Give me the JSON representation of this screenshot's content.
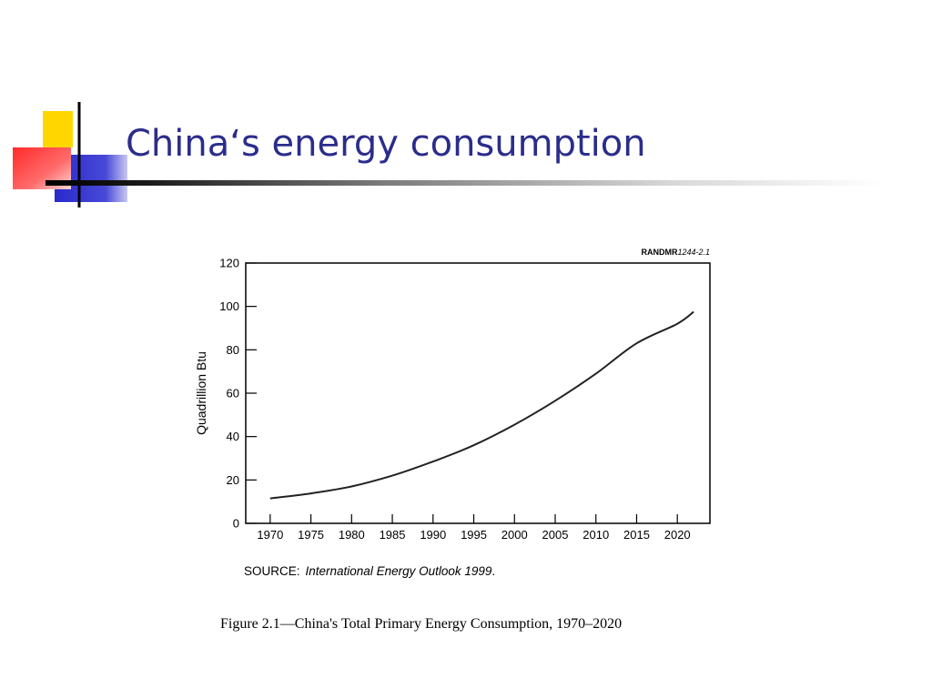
{
  "slide": {
    "title": "China‘s energy consumption"
  },
  "logo": {
    "colors": {
      "yellow": "#ffd700",
      "red": "#ff3030",
      "blue": "#2a2acc",
      "line": "#000000"
    }
  },
  "chart_data": {
    "type": "line",
    "reference_id_prefix": "RANDMR",
    "reference_id_suffix": "1244-2.1",
    "ylabel": "Quadrillion Btu",
    "xlabel": "",
    "xlim": [
      1967,
      2024
    ],
    "ylim": [
      0,
      120
    ],
    "x_ticks": [
      1970,
      1975,
      1980,
      1985,
      1990,
      1995,
      2000,
      2005,
      2010,
      2015,
      2020
    ],
    "y_ticks": [
      0,
      20,
      40,
      60,
      80,
      100,
      120
    ],
    "grid": false,
    "line_color": "#222222",
    "series": [
      {
        "x": [
          1970,
          1975,
          1980,
          1985,
          1990,
          1995,
          2000,
          2005,
          2010,
          2015,
          2020,
          2022
        ],
        "y": [
          11.5,
          13.8,
          17,
          22,
          28.5,
          36,
          45.5,
          56.5,
          69,
          83,
          92,
          97.5
        ]
      }
    ],
    "source_label": "SOURCE:",
    "source_text": "International Energy Outlook 1999",
    "source_end": ".",
    "caption": "Figure 2.1—China's Total Primary Energy Consumption, 1970–2020"
  }
}
